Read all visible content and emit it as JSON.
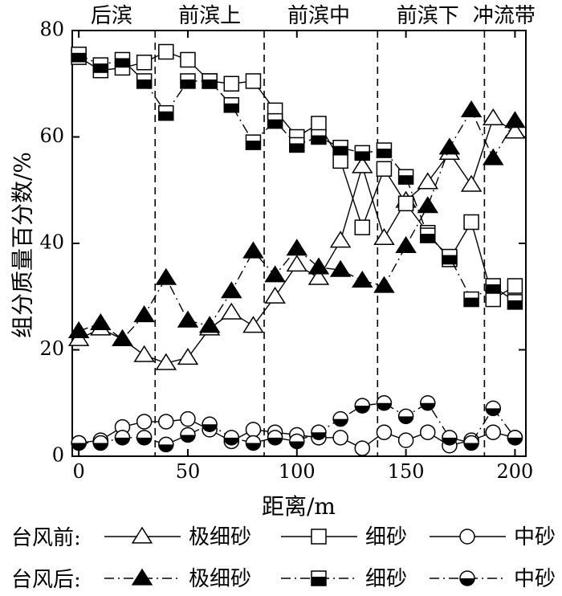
{
  "chart_data": {
    "type": "line",
    "xlabel": "距离/m",
    "ylabel": "组分质量百分数/%",
    "xlim": [
      -3,
      205
    ],
    "ylim": [
      0,
      80
    ],
    "xticks": [
      0,
      50,
      100,
      150,
      200
    ],
    "yticks": [
      0,
      20,
      40,
      60,
      80
    ],
    "grid": false,
    "legend_position": "bottom",
    "zone_boundaries": [
      35,
      85,
      137,
      186
    ],
    "zones": [
      {
        "label": "后滨",
        "x_center": 15
      },
      {
        "label": "前滨上",
        "x_center": 60
      },
      {
        "label": "前滨中",
        "x_center": 110
      },
      {
        "label": "前滨下",
        "x_center": 160
      },
      {
        "label": "冲流带",
        "x_center": 195
      }
    ],
    "legend": {
      "before_label": "台风前:",
      "after_label": "台风后:"
    },
    "x": [
      0,
      10,
      20,
      30,
      40,
      50,
      60,
      70,
      80,
      90,
      100,
      110,
      120,
      130,
      140,
      150,
      160,
      170,
      180,
      190,
      200
    ],
    "series": [
      {
        "name": "极细砂",
        "group": "台风前",
        "marker": "triangle-open",
        "dash": "solid",
        "values": [
          22,
          24,
          22,
          19,
          17.5,
          18.5,
          24,
          27,
          24.5,
          30,
          36,
          33.5,
          40.5,
          54.5,
          41,
          48,
          51.5,
          57,
          51,
          63.5,
          61
        ]
      },
      {
        "name": "细砂",
        "group": "台风前",
        "marker": "square-open",
        "dash": "solid",
        "values": [
          75,
          72.5,
          73,
          74,
          76,
          74.5,
          70.5,
          70,
          70.5,
          65,
          60,
          62.5,
          55.5,
          43,
          54,
          47.5,
          42,
          37,
          44,
          29.5,
          32
        ]
      },
      {
        "name": "中砂",
        "group": "台风前",
        "marker": "circle-open",
        "dash": "solid",
        "values": [
          2.5,
          3,
          5.5,
          6.5,
          6.5,
          7,
          5,
          2.8,
          5,
          4.5,
          4,
          3.5,
          3.5,
          1.5,
          4.5,
          3,
          4.5,
          2,
          3,
          4.5,
          3.5
        ]
      },
      {
        "name": "极细砂",
        "group": "台风后",
        "marker": "triangle-filled",
        "dash": "dashdot",
        "values": [
          23.5,
          25,
          22,
          26.5,
          33.5,
          25.5,
          24.5,
          31,
          38.5,
          34,
          39,
          35.5,
          35,
          33,
          32,
          39.5,
          47,
          58,
          65,
          56,
          63
        ]
      },
      {
        "name": "细砂",
        "group": "台风后",
        "marker": "square-half",
        "dash": "dashdot",
        "values": [
          75.5,
          73.5,
          74.5,
          70.5,
          64.5,
          70.5,
          70.5,
          66,
          59,
          63,
          58.5,
          60,
          58,
          57,
          57.5,
          52.5,
          41.5,
          37.5,
          29.5,
          32,
          29
        ]
      },
      {
        "name": "中砂",
        "group": "台风后",
        "marker": "circle-half",
        "dash": "dashdot",
        "values": [
          2.5,
          2.5,
          3.5,
          3.5,
          2.2,
          4,
          6,
          3.5,
          2.5,
          3.5,
          2.8,
          4.5,
          7,
          9.5,
          10,
          7.5,
          10,
          3.5,
          2.5,
          9,
          3.5
        ]
      }
    ]
  }
}
